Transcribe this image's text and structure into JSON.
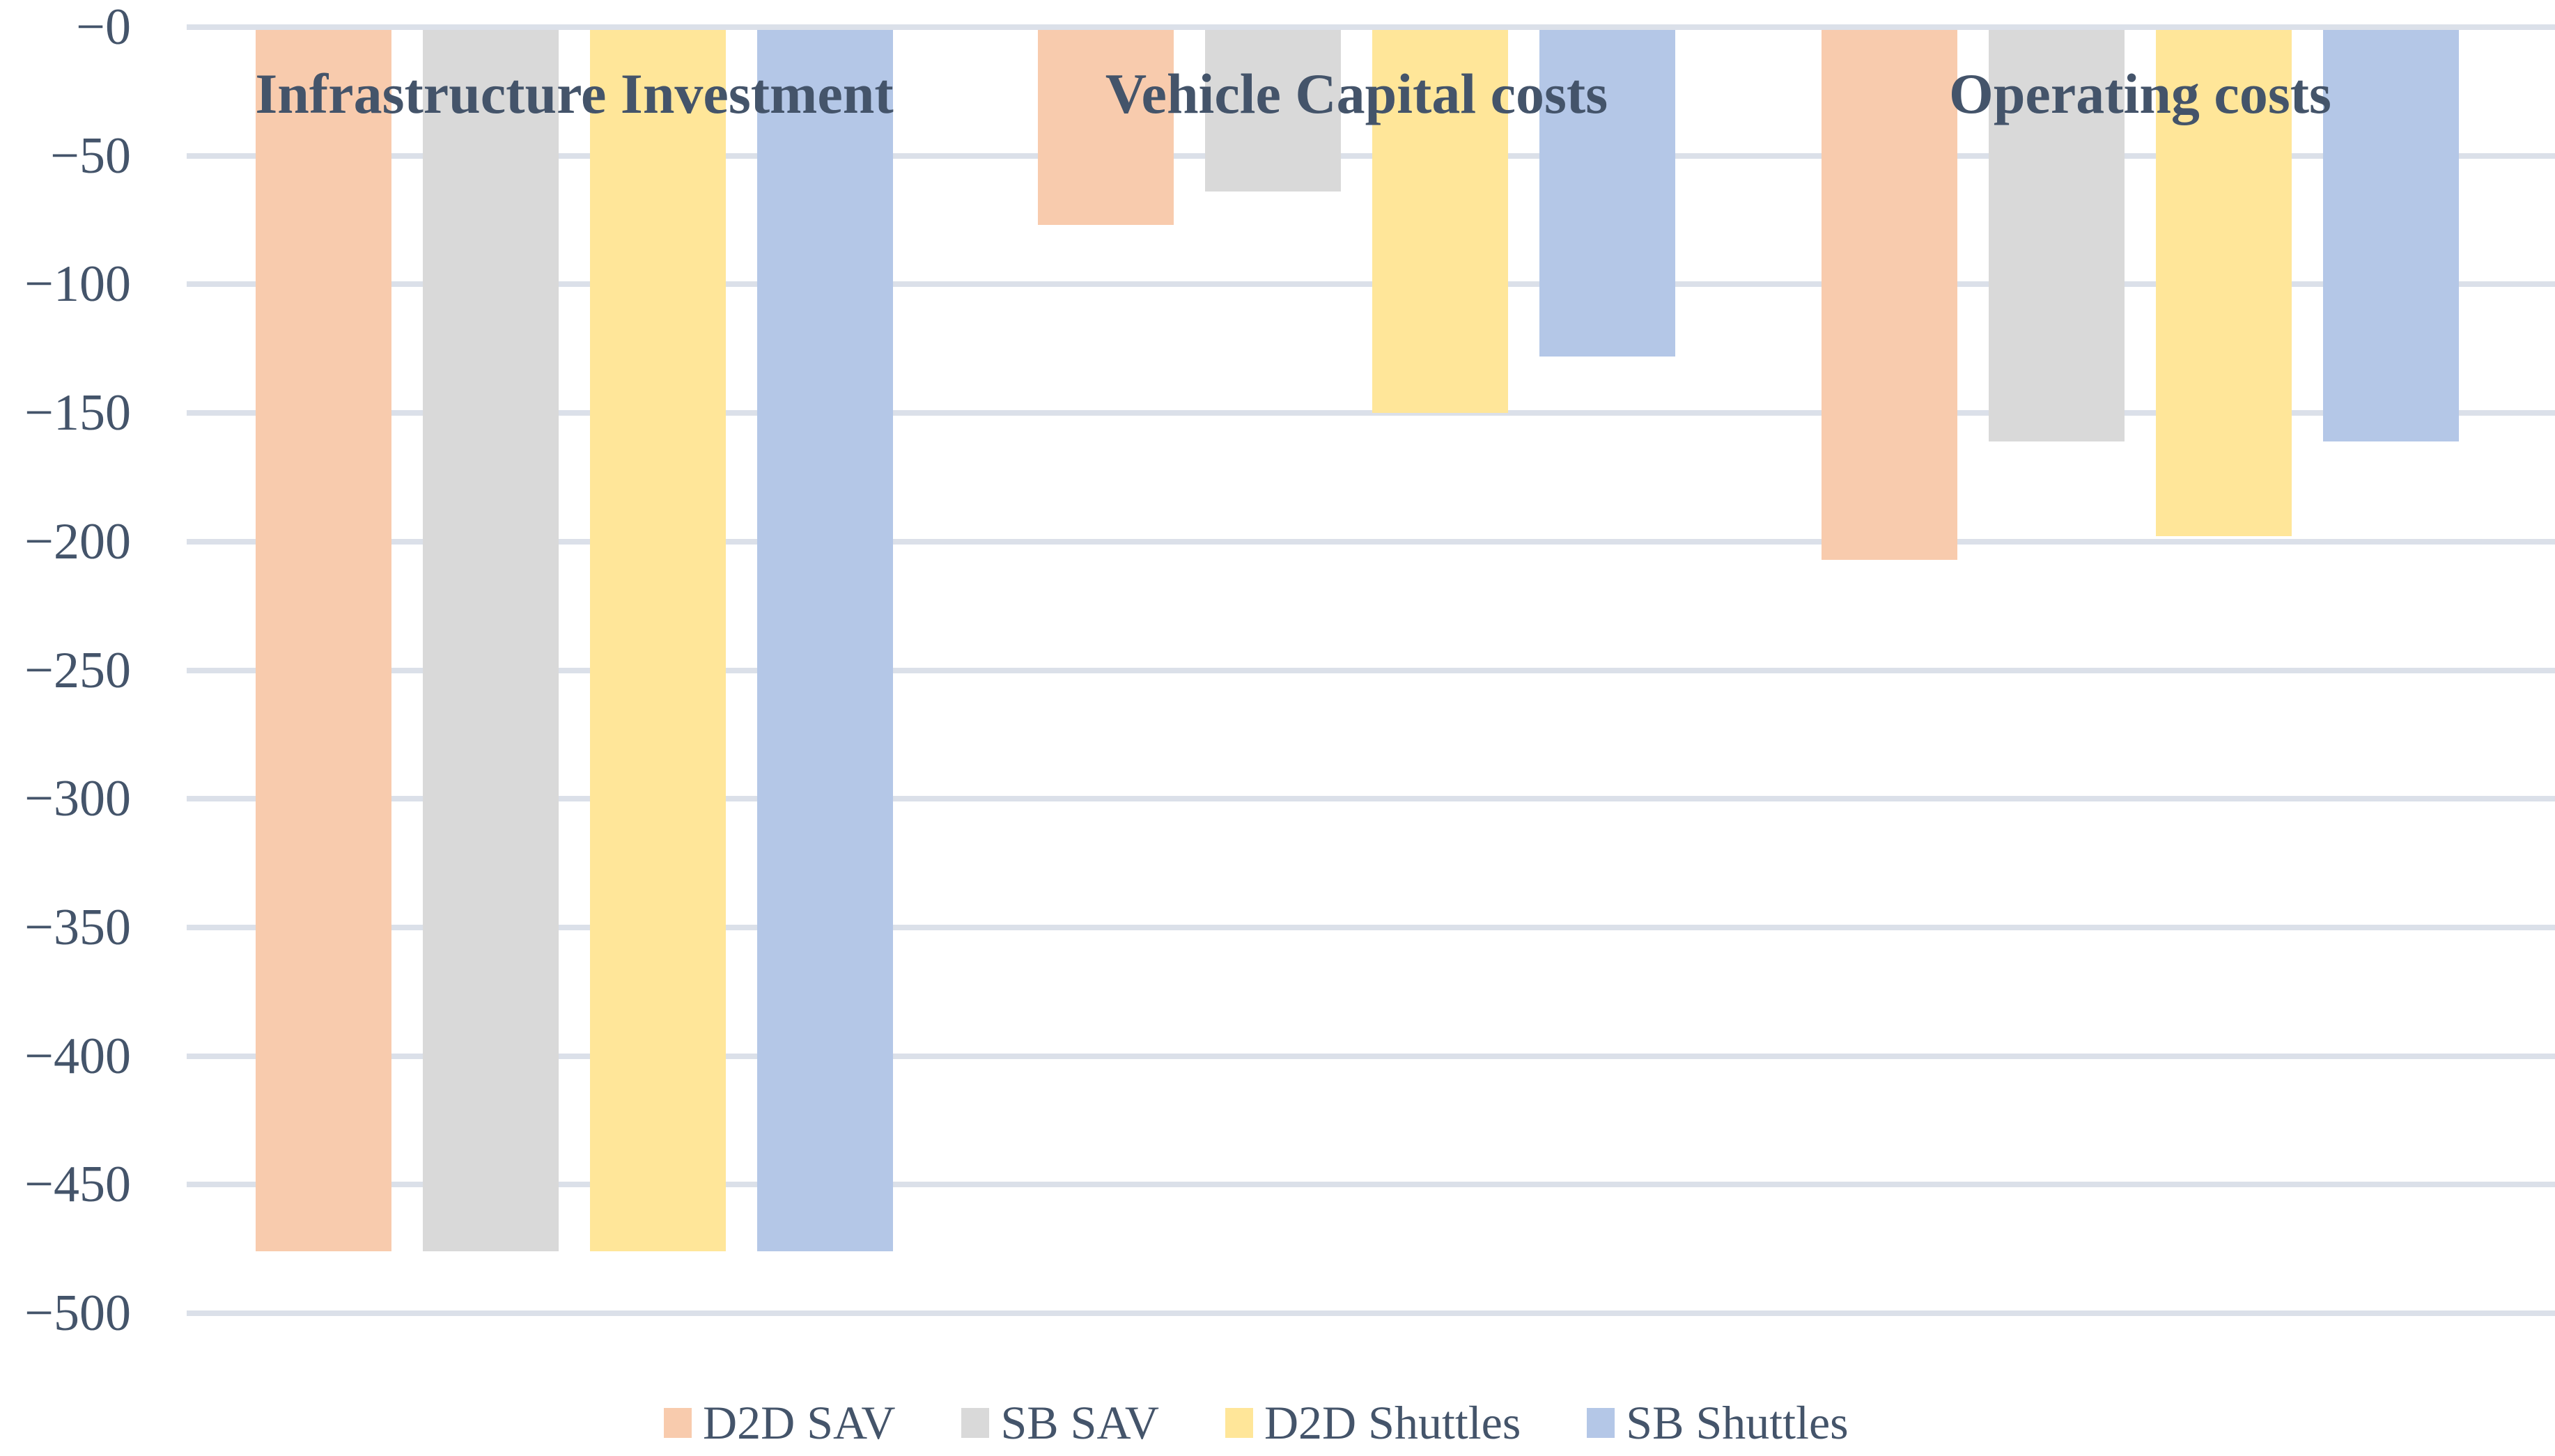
{
  "chart_data": {
    "type": "bar",
    "orientation": "vertical-negative",
    "title": "",
    "categories": [
      "Infrastructure Investment",
      "Vehicle Capital costs",
      "Operating costs"
    ],
    "series": [
      {
        "name": "D2D SAV",
        "color": "#F8CBAD",
        "values": [
          -476,
          -77,
          -207
        ]
      },
      {
        "name": "SB SAV",
        "color": "#D9D9D9",
        "values": [
          -476,
          -64,
          -161
        ]
      },
      {
        "name": "D2D Shuttles",
        "color": "#FFE699",
        "values": [
          -476,
          -150,
          -198
        ]
      },
      {
        "name": "SB Shuttles",
        "color": "#B4C7E7",
        "values": [
          -476,
          -128,
          -161
        ]
      }
    ],
    "ylim": [
      -500,
      0
    ],
    "ytick_interval": 50,
    "ytick_labels": [
      "−0",
      "−50",
      "−100",
      "−150",
      "−200",
      "−250",
      "−300",
      "−350",
      "−400",
      "−450",
      "−500"
    ],
    "grid": true,
    "gridline_color": "#dbe0e9",
    "text_color": "#44546A",
    "legend_position": "bottom",
    "legend_labels": [
      "D2D SAV",
      "SB SAV",
      "D2D Shuttles",
      "SB Shuttles"
    ]
  }
}
